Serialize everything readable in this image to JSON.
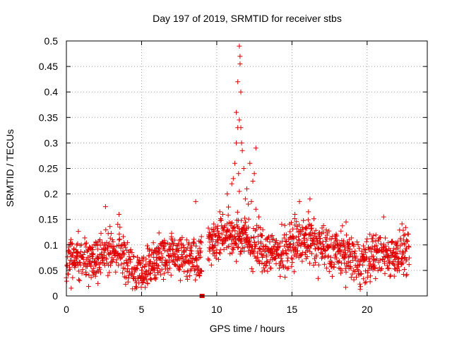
{
  "chart_data": {
    "type": "scatter",
    "title": "Day 197 of 2019, SRMTID for receiver stbs",
    "xlabel": "GPS time / hours",
    "ylabel": "SRMTID / TECUs",
    "xlim": [
      0,
      24
    ],
    "ylim": [
      0,
      0.5
    ],
    "xticks": [
      0,
      5,
      10,
      15,
      20
    ],
    "xtick_labels": [
      "0",
      "5",
      "10",
      "15",
      "20"
    ],
    "yticks": [
      0,
      0.05,
      0.1,
      0.15,
      0.2,
      0.25,
      0.3,
      0.35,
      0.4,
      0.45,
      0.5
    ],
    "ytick_labels": [
      "0",
      "0.05",
      "0.1",
      "0.15",
      "0.2",
      "0.25",
      "0.3",
      "0.35",
      "0.4",
      "0.45",
      "0.5"
    ],
    "grid": true,
    "marker": "plus",
    "color": "#e00000",
    "time_step_hours": 0.02,
    "trend": [
      [
        0,
        0.065
      ],
      [
        0.5,
        0.08
      ],
      [
        1,
        0.07
      ],
      [
        1.5,
        0.065
      ],
      [
        2,
        0.07
      ],
      [
        2.5,
        0.09
      ],
      [
        3,
        0.085
      ],
      [
        3.5,
        0.09
      ],
      [
        4,
        0.07
      ],
      [
        4.5,
        0.05
      ],
      [
        5,
        0.045
      ],
      [
        5.5,
        0.06
      ],
      [
        6,
        0.075
      ],
      [
        6.5,
        0.08
      ],
      [
        7,
        0.085
      ],
      [
        7.5,
        0.08
      ],
      [
        8,
        0.075
      ],
      [
        8.5,
        0.085
      ],
      [
        9,
        0.075
      ],
      [
        9.5,
        0.1
      ],
      [
        10,
        0.11
      ],
      [
        10.5,
        0.12
      ],
      [
        11,
        0.115
      ],
      [
        11.5,
        0.12
      ],
      [
        12,
        0.11
      ],
      [
        12.5,
        0.1
      ],
      [
        13,
        0.09
      ],
      [
        13.5,
        0.085
      ],
      [
        14,
        0.085
      ],
      [
        14.5,
        0.095
      ],
      [
        15,
        0.1
      ],
      [
        15.5,
        0.11
      ],
      [
        16,
        0.11
      ],
      [
        16.5,
        0.1
      ],
      [
        17,
        0.095
      ],
      [
        17.5,
        0.09
      ],
      [
        18,
        0.085
      ],
      [
        18.5,
        0.08
      ],
      [
        19,
        0.075
      ],
      [
        19.5,
        0.065
      ],
      [
        20,
        0.07
      ],
      [
        20.5,
        0.08
      ],
      [
        21,
        0.085
      ],
      [
        21.5,
        0.08
      ],
      [
        22,
        0.08
      ],
      [
        22.5,
        0.085
      ],
      [
        22.8,
        0.09
      ]
    ],
    "spread": 0.045,
    "gaps": [
      [
        9.0,
        9.4
      ]
    ],
    "storm_highlights": [
      [
        11.3,
        0.36
      ],
      [
        11.4,
        0.42
      ],
      [
        11.5,
        0.49
      ],
      [
        11.55,
        0.47
      ],
      [
        11.55,
        0.455
      ],
      [
        11.6,
        0.4
      ],
      [
        11.5,
        0.345
      ],
      [
        11.6,
        0.33
      ],
      [
        11.65,
        0.3
      ],
      [
        11.7,
        0.285
      ],
      [
        11.4,
        0.33
      ],
      [
        11.3,
        0.3
      ],
      [
        11.2,
        0.26
      ],
      [
        11.8,
        0.25
      ],
      [
        11.1,
        0.23
      ],
      [
        12.0,
        0.21
      ],
      [
        12.2,
        0.26
      ],
      [
        12.4,
        0.225
      ],
      [
        12.6,
        0.29
      ],
      [
        12.5,
        0.24
      ],
      [
        12.3,
        0.185
      ],
      [
        12.1,
        0.18
      ],
      [
        11.5,
        0.205
      ],
      [
        11.0,
        0.22
      ],
      [
        11.9,
        0.19
      ],
      [
        12.6,
        0.17
      ],
      [
        10.7,
        0.2
      ],
      [
        10.4,
        0.16
      ],
      [
        12.8,
        0.155
      ],
      [
        11.45,
        0.24
      ],
      [
        15.5,
        0.185
      ],
      [
        16.2,
        0.19
      ],
      [
        16.1,
        0.165
      ],
      [
        8.6,
        0.185
      ],
      [
        2.6,
        0.175
      ],
      [
        10.2,
        0.165
      ],
      [
        15.2,
        0.16
      ],
      [
        21.1,
        0.155
      ],
      [
        3.5,
        0.16
      ],
      [
        18.6,
        0.145
      ]
    ],
    "lowest_point": {
      "x": 9.0,
      "y": 0.0
    }
  }
}
